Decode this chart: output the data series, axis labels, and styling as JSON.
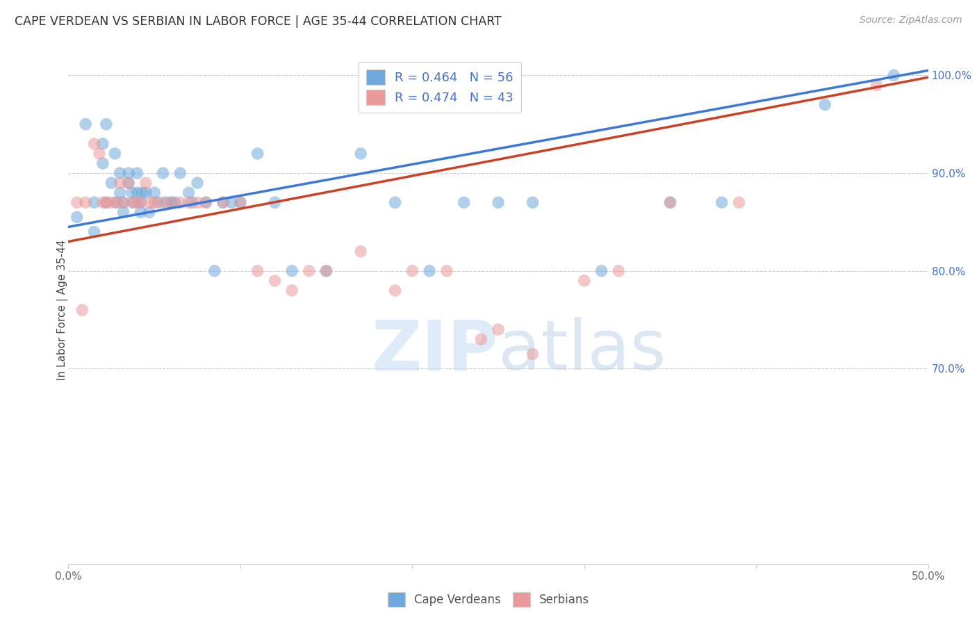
{
  "title": "CAPE VERDEAN VS SERBIAN IN LABOR FORCE | AGE 35-44 CORRELATION CHART",
  "source": "Source: ZipAtlas.com",
  "ylabel": "In Labor Force | Age 35-44",
  "x_min": 0.0,
  "x_max": 0.5,
  "y_min": 0.5,
  "y_max": 1.02,
  "y_ticks_right": [
    0.7,
    0.8,
    0.9,
    1.0
  ],
  "y_tick_labels_right": [
    "70.0%",
    "80.0%",
    "90.0%",
    "100.0%"
  ],
  "blue_R": 0.464,
  "blue_N": 56,
  "pink_R": 0.474,
  "pink_N": 43,
  "blue_color": "#6fa8dc",
  "pink_color": "#ea9999",
  "blue_line_color": "#3c78d8",
  "pink_line_color": "#cc4125",
  "watermark_zip": "ZIP",
  "watermark_atlas": "atlas",
  "blue_scatter_x": [
    0.005,
    0.01,
    0.015,
    0.015,
    0.02,
    0.02,
    0.022,
    0.022,
    0.025,
    0.027,
    0.028,
    0.03,
    0.03,
    0.032,
    0.032,
    0.035,
    0.035,
    0.037,
    0.038,
    0.04,
    0.04,
    0.042,
    0.042,
    0.043,
    0.045,
    0.047,
    0.05,
    0.052,
    0.055,
    0.057,
    0.06,
    0.062,
    0.065,
    0.07,
    0.072,
    0.075,
    0.08,
    0.085,
    0.09,
    0.095,
    0.1,
    0.11,
    0.12,
    0.13,
    0.15,
    0.17,
    0.19,
    0.21,
    0.23,
    0.25,
    0.27,
    0.31,
    0.35,
    0.38,
    0.44,
    0.48
  ],
  "blue_scatter_y": [
    0.855,
    0.95,
    0.87,
    0.84,
    0.93,
    0.91,
    0.95,
    0.87,
    0.89,
    0.92,
    0.87,
    0.9,
    0.88,
    0.87,
    0.86,
    0.9,
    0.89,
    0.88,
    0.87,
    0.9,
    0.88,
    0.87,
    0.86,
    0.88,
    0.88,
    0.86,
    0.88,
    0.87,
    0.9,
    0.87,
    0.87,
    0.87,
    0.9,
    0.88,
    0.87,
    0.89,
    0.87,
    0.8,
    0.87,
    0.87,
    0.87,
    0.92,
    0.87,
    0.8,
    0.8,
    0.92,
    0.87,
    0.8,
    0.87,
    0.87,
    0.87,
    0.8,
    0.87,
    0.87,
    0.97,
    1.0
  ],
  "pink_scatter_x": [
    0.005,
    0.008,
    0.01,
    0.015,
    0.018,
    0.02,
    0.022,
    0.025,
    0.028,
    0.03,
    0.032,
    0.035,
    0.037,
    0.04,
    0.042,
    0.045,
    0.048,
    0.05,
    0.055,
    0.06,
    0.065,
    0.07,
    0.075,
    0.08,
    0.09,
    0.1,
    0.11,
    0.12,
    0.13,
    0.14,
    0.15,
    0.17,
    0.19,
    0.2,
    0.22,
    0.24,
    0.25,
    0.27,
    0.3,
    0.32,
    0.35,
    0.39,
    0.47
  ],
  "pink_scatter_y": [
    0.87,
    0.76,
    0.87,
    0.93,
    0.92,
    0.87,
    0.87,
    0.87,
    0.87,
    0.89,
    0.87,
    0.89,
    0.87,
    0.87,
    0.87,
    0.89,
    0.87,
    0.87,
    0.87,
    0.87,
    0.87,
    0.87,
    0.87,
    0.87,
    0.87,
    0.87,
    0.8,
    0.79,
    0.78,
    0.8,
    0.8,
    0.82,
    0.78,
    0.8,
    0.8,
    0.73,
    0.74,
    0.715,
    0.79,
    0.8,
    0.87,
    0.87,
    0.99
  ],
  "blue_line_x0": 0.0,
  "blue_line_y0": 0.845,
  "blue_line_x1": 0.5,
  "blue_line_y1": 1.005,
  "pink_line_x0": 0.0,
  "pink_line_y0": 0.83,
  "pink_line_x1": 0.5,
  "pink_line_y1": 0.998
}
